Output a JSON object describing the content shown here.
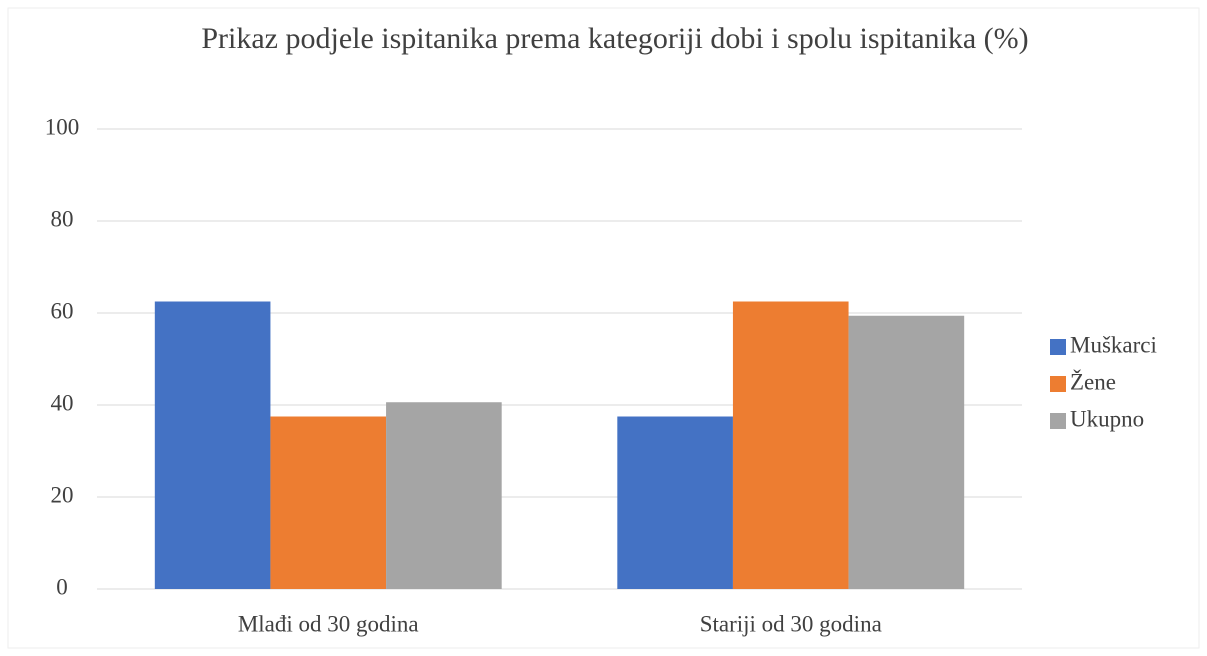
{
  "chart_data": {
    "type": "bar",
    "title": "Prikaz podjele ispitanika prema kategoriji dobi i spolu ispitanika (%)",
    "categories": [
      "Mlađi od 30 godina",
      "Stariji od 30 godina"
    ],
    "series": [
      {
        "name": "Muškarci",
        "color": "#4472c4",
        "values": [
          62.5,
          37.5
        ]
      },
      {
        "name": "Žene",
        "color": "#ed7d31",
        "values": [
          37.5,
          62.5
        ]
      },
      {
        "name": "Ukupno",
        "color": "#a5a5a5",
        "values": [
          40.6,
          59.4
        ]
      }
    ],
    "ylim": [
      0,
      100
    ],
    "yticks": [
      0,
      20,
      40,
      60,
      80,
      100
    ],
    "grid": true,
    "legend": "right"
  }
}
